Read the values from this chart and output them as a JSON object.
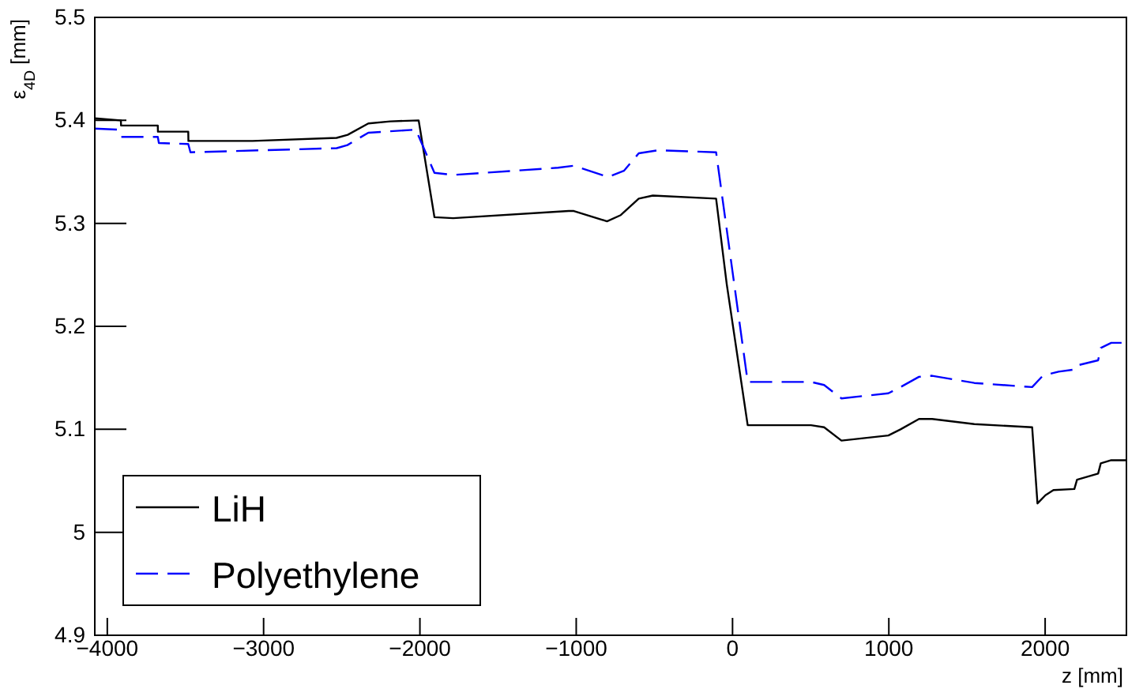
{
  "chart_data": {
    "type": "line",
    "xlabel": "z  [mm]",
    "ylabel": "ε$_{4D}$  [mm]",
    "xlim": [
      -4080,
      2520
    ],
    "ylim": [
      4.9,
      5.5
    ],
    "xticks": [
      {
        "value": -4000,
        "label": "−4000"
      },
      {
        "value": -3000,
        "label": "−3000"
      },
      {
        "value": -2000,
        "label": "−2000"
      },
      {
        "value": -1000,
        "label": "−1000"
      },
      0,
      1000,
      2000
    ],
    "yticks": [
      4.9,
      5,
      5.1,
      5.2,
      5.3,
      5.4,
      5.5
    ],
    "legend": "bottom left",
    "grid": false,
    "series": [
      {
        "name": "LiH",
        "color": "#000000",
        "line_style": "solid",
        "x": [
          -4080,
          -3913,
          -3912,
          -3677,
          -3676,
          -3482,
          -3481,
          -3071,
          -2533,
          -2462,
          -2330,
          -2190,
          -2008,
          -1907,
          -1787,
          -1048,
          -1015,
          -803,
          -715,
          -600,
          -510,
          -105,
          -37,
          97,
          502,
          586,
          697,
          997,
          1075,
          1193,
          1277,
          1547,
          1917,
          1951,
          2002,
          2053,
          2187,
          2204,
          2339,
          2356,
          2423,
          2518
        ],
        "values": [
          5.402,
          5.4,
          5.395,
          5.395,
          5.389,
          5.389,
          5.38,
          5.38,
          5.383,
          5.386,
          5.397,
          5.399,
          5.4,
          5.306,
          5.305,
          5.312,
          5.312,
          5.302,
          5.308,
          5.324,
          5.327,
          5.324,
          5.241,
          5.104,
          5.104,
          5.102,
          5.089,
          5.094,
          5.1,
          5.11,
          5.11,
          5.105,
          5.102,
          5.028,
          5.036,
          5.041,
          5.042,
          5.051,
          5.057,
          5.067,
          5.07,
          5.07
        ]
      },
      {
        "name": "Polyethylene",
        "color": "#0000ff",
        "line_style": "dashed",
        "x": [
          -4080,
          -3930,
          -3913,
          -3677,
          -3670,
          -3482,
          -3468,
          -2532,
          -2464,
          -2330,
          -2026,
          -1907,
          -1787,
          -1116,
          -1015,
          -796,
          -695,
          -600,
          -475,
          -105,
          97,
          502,
          586,
          697,
          997,
          1075,
          1193,
          1277,
          1547,
          1917,
          1985,
          2086,
          2187,
          2204,
          2339,
          2356,
          2423,
          2518
        ],
        "values": [
          5.392,
          5.391,
          5.384,
          5.384,
          5.378,
          5.377,
          5.369,
          5.373,
          5.376,
          5.388,
          5.391,
          5.349,
          5.347,
          5.354,
          5.356,
          5.345,
          5.351,
          5.368,
          5.371,
          5.369,
          5.146,
          5.146,
          5.143,
          5.13,
          5.135,
          5.141,
          5.151,
          5.152,
          5.145,
          5.141,
          5.152,
          5.156,
          5.158,
          5.162,
          5.167,
          5.179,
          5.184,
          5.184
        ]
      }
    ]
  }
}
